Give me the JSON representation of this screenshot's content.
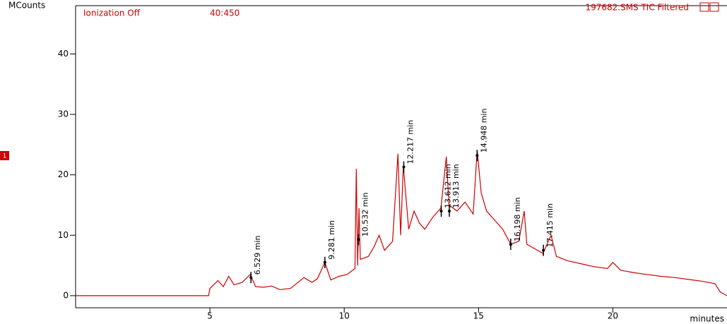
{
  "chart_data": {
    "type": "line",
    "title": "197682.SMS TIC Filtered",
    "status_text": "Ionization Off",
    "range_text": "40:450",
    "trace_marker": "1",
    "y_label": "MCounts",
    "x_label": "minutes",
    "xlim": [
      0,
      24.25
    ],
    "ylim": [
      -2,
      48
    ],
    "xticks": [
      5,
      10,
      15,
      20
    ],
    "yticks": [
      0,
      10,
      20,
      30,
      40
    ],
    "series": [
      {
        "name": "TIC",
        "color": "#cc0000",
        "x": [
          0,
          4.95,
          5.0,
          5.3,
          5.5,
          5.7,
          5.9,
          6.2,
          6.5,
          6.7,
          7.0,
          7.3,
          7.6,
          8.0,
          8.5,
          8.8,
          9.0,
          9.28,
          9.5,
          9.8,
          10.1,
          10.4,
          10.45,
          10.5,
          10.55,
          10.6,
          10.9,
          11.1,
          11.3,
          11.5,
          11.8,
          12.0,
          12.1,
          12.2,
          12.4,
          12.6,
          12.8,
          13.0,
          13.3,
          13.6,
          13.8,
          13.9,
          14.2,
          14.5,
          14.8,
          14.95,
          15.1,
          15.3,
          15.6,
          15.9,
          16.2,
          16.5,
          16.7,
          16.8,
          17.0,
          17.4,
          17.7,
          17.9,
          18.3,
          18.8,
          19.3,
          19.8,
          20.0,
          20.3,
          20.8,
          21.3,
          21.8,
          22.3,
          22.8,
          23.3,
          23.8,
          24.0,
          24.25
        ],
        "values": [
          0,
          0,
          1.2,
          2.5,
          1.5,
          3.2,
          1.8,
          2.2,
          3.5,
          1.5,
          1.4,
          1.6,
          1.0,
          1.2,
          3.0,
          2.2,
          2.8,
          5.5,
          2.6,
          3.2,
          3.5,
          4.5,
          21,
          5,
          14.5,
          6,
          6.5,
          8,
          10,
          7.5,
          9,
          23.5,
          10,
          21.5,
          11,
          14,
          12,
          11,
          13,
          14.5,
          23,
          15,
          14,
          15.5,
          13.5,
          24,
          17,
          14,
          12.5,
          11,
          8.5,
          9,
          14,
          8.5,
          8,
          7,
          10,
          6.5,
          5.8,
          5.3,
          4.8,
          4.5,
          5.5,
          4.2,
          3.8,
          3.5,
          3.2,
          3.0,
          2.7,
          2.4,
          2.0,
          0.6,
          0
        ]
      }
    ],
    "annotations": [
      {
        "label": "6.529 min",
        "x": 6.529,
        "y": 3
      },
      {
        "label": "9.281 min",
        "x": 9.281,
        "y": 5.5
      },
      {
        "label": "10.532 min",
        "x": 10.532,
        "y": 9.3
      },
      {
        "label": "12.217 min",
        "x": 12.217,
        "y": 21.3
      },
      {
        "label": "13.612 min",
        "x": 13.612,
        "y": 14
      },
      {
        "label": "13.913 min",
        "x": 13.913,
        "y": 14
      },
      {
        "label": "14.948 min",
        "x": 14.948,
        "y": 23.2
      },
      {
        "label": "16.198 min",
        "x": 16.198,
        "y": 8.5
      },
      {
        "label": "17.415 min",
        "x": 17.415,
        "y": 7.5
      }
    ]
  }
}
